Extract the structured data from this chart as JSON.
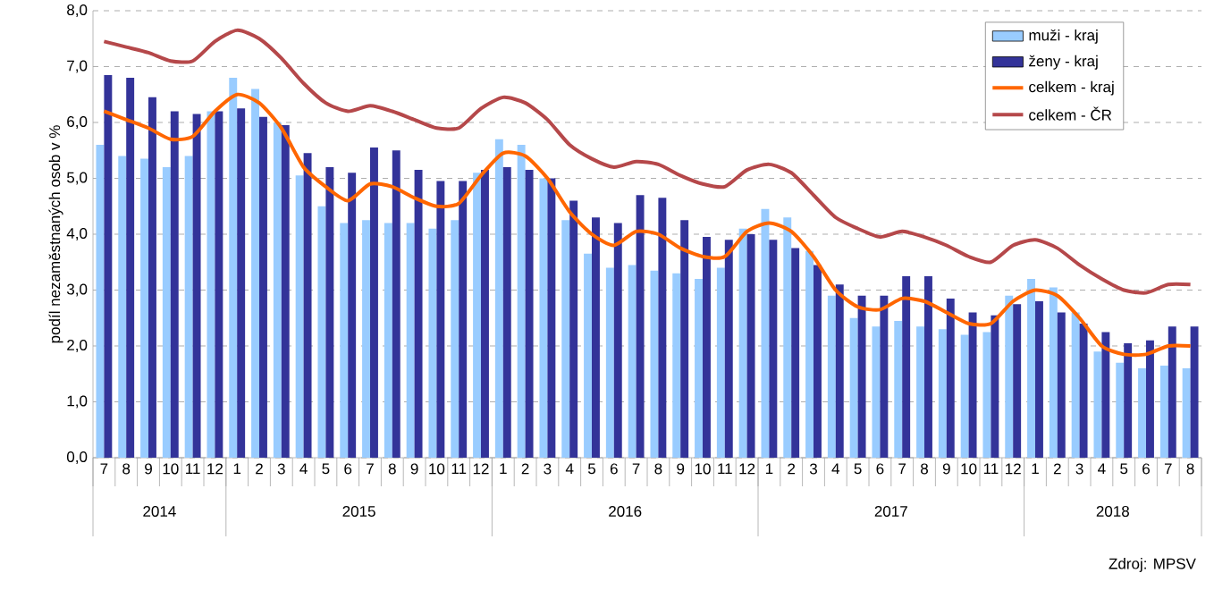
{
  "chart_data": {
    "type": "bar",
    "ylabel": "podíl nezaměstnaných osob v %",
    "categories": [
      "7",
      "8",
      "9",
      "10",
      "11",
      "12",
      "1",
      "2",
      "3",
      "4",
      "5",
      "6",
      "7",
      "8",
      "9",
      "10",
      "11",
      "12",
      "1",
      "2",
      "3",
      "4",
      "5",
      "6",
      "7",
      "8",
      "9",
      "10",
      "11",
      "12",
      "1",
      "2",
      "3",
      "4",
      "5",
      "6",
      "7",
      "8",
      "9",
      "10",
      "11",
      "12",
      "1",
      "2",
      "3",
      "4",
      "5",
      "6",
      "7",
      "8"
    ],
    "series": [
      {
        "name": "muži - kraj",
        "color": "#99ccff",
        "values": [
          5.6,
          5.4,
          5.35,
          5.2,
          5.4,
          6.2,
          6.8,
          6.6,
          6.0,
          5.05,
          4.5,
          4.2,
          4.25,
          4.2,
          4.2,
          4.1,
          4.25,
          5.1,
          5.7,
          5.6,
          5.0,
          4.25,
          3.65,
          3.4,
          3.45,
          3.35,
          3.3,
          3.2,
          3.4,
          4.1,
          4.45,
          4.3,
          3.7,
          2.9,
          2.5,
          2.35,
          2.45,
          2.35,
          2.3,
          2.2,
          2.25,
          2.9,
          3.2,
          3.05,
          2.6,
          1.9,
          1.7,
          1.6,
          1.65,
          1.6
        ]
      },
      {
        "name": "ženy - kraj",
        "color": "#333399",
        "values": [
          6.85,
          6.8,
          6.45,
          6.2,
          6.15,
          6.2,
          6.25,
          6.1,
          5.95,
          5.45,
          5.2,
          5.1,
          5.55,
          5.5,
          5.15,
          4.95,
          4.95,
          5.15,
          5.2,
          5.15,
          5.0,
          4.6,
          4.3,
          4.2,
          4.7,
          4.65,
          4.25,
          3.95,
          3.9,
          4.0,
          3.9,
          3.75,
          3.45,
          3.1,
          2.9,
          2.9,
          3.25,
          3.25,
          2.85,
          2.6,
          2.55,
          2.75,
          2.8,
          2.6,
          2.4,
          2.25,
          2.05,
          2.1,
          2.35,
          2.35
        ]
      },
      {
        "name": "celkem - kraj",
        "type": "line",
        "color": "#ff6600",
        "values": [
          6.2,
          6.05,
          5.9,
          5.7,
          5.75,
          6.2,
          6.5,
          6.35,
          5.9,
          5.2,
          4.85,
          4.6,
          4.9,
          4.85,
          4.65,
          4.5,
          4.55,
          5.05,
          5.45,
          5.4,
          5.0,
          4.4,
          4.0,
          3.8,
          4.05,
          4.0,
          3.75,
          3.6,
          3.6,
          4.05,
          4.2,
          4.05,
          3.6,
          3.0,
          2.7,
          2.65,
          2.85,
          2.8,
          2.6,
          2.4,
          2.4,
          2.8,
          3.0,
          2.9,
          2.5,
          2.0,
          1.85,
          1.85,
          2.0,
          2.0
        ]
      },
      {
        "name": "celkem - ČR",
        "type": "line",
        "color": "#b5484a",
        "values": [
          7.45,
          7.35,
          7.25,
          7.1,
          7.1,
          7.45,
          7.65,
          7.5,
          7.15,
          6.7,
          6.35,
          6.2,
          6.3,
          6.2,
          6.05,
          5.9,
          5.9,
          6.25,
          6.45,
          6.35,
          6.05,
          5.6,
          5.35,
          5.2,
          5.3,
          5.25,
          5.05,
          4.9,
          4.85,
          5.15,
          5.25,
          5.1,
          4.7,
          4.3,
          4.1,
          3.95,
          4.05,
          3.95,
          3.8,
          3.6,
          3.5,
          3.8,
          3.9,
          3.75,
          3.45,
          3.2,
          3.0,
          2.95,
          3.1,
          3.1
        ]
      }
    ],
    "ylim": [
      0,
      8
    ],
    "yticks": [
      {
        "value": 0,
        "label": "0,0"
      },
      {
        "value": 1,
        "label": "1,0"
      },
      {
        "value": 2,
        "label": "2,0"
      },
      {
        "value": 3,
        "label": "3,0"
      },
      {
        "value": 4,
        "label": "4,0"
      },
      {
        "value": 5,
        "label": "5,0"
      },
      {
        "value": 6,
        "label": "6,0"
      },
      {
        "value": 7,
        "label": "7,0"
      },
      {
        "value": 8,
        "label": "8,0"
      }
    ],
    "grid": "y",
    "legend": "top right",
    "annotations": [
      "2014",
      "2015",
      "2016",
      "2017",
      "2018",
      "Zdroj: MPSV"
    ]
  }
}
